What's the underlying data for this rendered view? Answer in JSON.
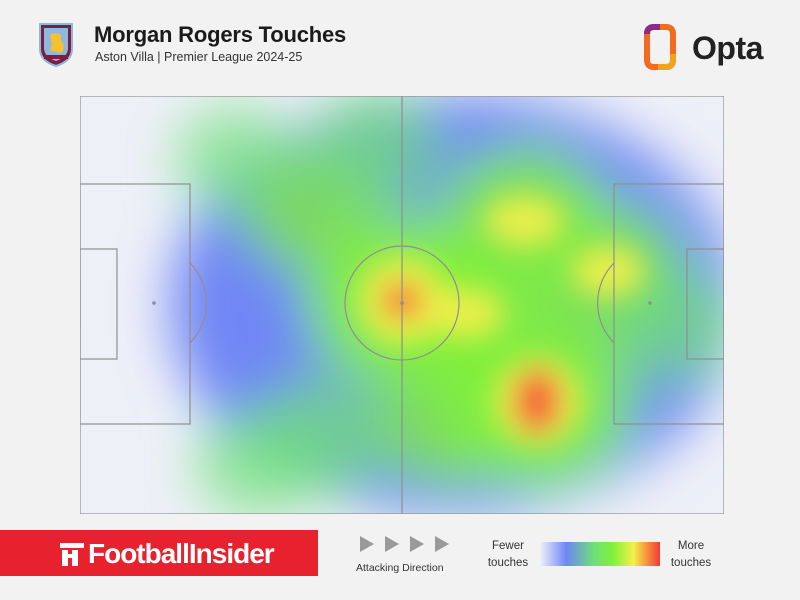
{
  "header": {
    "title": "Morgan Rogers Touches",
    "subtitle": "Aston Villa | Premier League 2024-25",
    "brand": "Opta",
    "crest_icon": "aston-villa-crest-icon",
    "colors": {
      "crest_claret": "#7a1f3d",
      "crest_blue": "#8fb8e0",
      "crest_gold": "#f2c230",
      "opta_orange": "#f26b21",
      "opta_purple": "#8c2a8c"
    }
  },
  "chart_data": {
    "type": "heatmap",
    "title": "Morgan Rogers Touches",
    "subtitle": "Aston Villa | Premier League 2024-25",
    "pitch": {
      "length": 100,
      "width": 100,
      "markings": "football-pitch",
      "attacking_direction": "left-to-right"
    },
    "color_scale": [
      "#eef0f8",
      "#6f86f5",
      "#6fe07a",
      "#7ff03a",
      "#f4f04a",
      "#f68a3c",
      "#f23a3a"
    ],
    "hotspots": [
      {
        "x": 50,
        "y": 49,
        "intensity": 1.0
      },
      {
        "x": 71,
        "y": 73,
        "intensity": 1.0
      },
      {
        "x": 69,
        "y": 30,
        "intensity": 0.8
      },
      {
        "x": 60,
        "y": 52,
        "intensity": 0.7
      },
      {
        "x": 82,
        "y": 42,
        "intensity": 0.65
      },
      {
        "x": 57,
        "y": 78,
        "intensity": 0.6
      },
      {
        "x": 36,
        "y": 27,
        "intensity": 0.55
      },
      {
        "x": 37,
        "y": 82,
        "intensity": 0.5
      },
      {
        "x": 92,
        "y": 55,
        "intensity": 0.45
      },
      {
        "x": 24,
        "y": 15,
        "intensity": 0.35
      },
      {
        "x": 27,
        "y": 88,
        "intensity": 0.35
      },
      {
        "x": 46,
        "y": 12,
        "intensity": 0.45
      }
    ],
    "legend": {
      "low_label": "Fewer touches",
      "high_label": "More touches",
      "direction_label": "Attacking Direction"
    }
  },
  "footer": {
    "publisher": "FootballInsider",
    "publisher_icon": "football-insider-logo-icon",
    "direction_icon": "play-arrows-icon",
    "attacking_direction": "Attacking Direction",
    "fewer_touches": [
      "Fewer",
      "touches"
    ],
    "more_touches": [
      "More",
      "touches"
    ],
    "colors": {
      "publisher_red": "#e8212e",
      "arrow_gray": "#9a9a9a"
    }
  }
}
